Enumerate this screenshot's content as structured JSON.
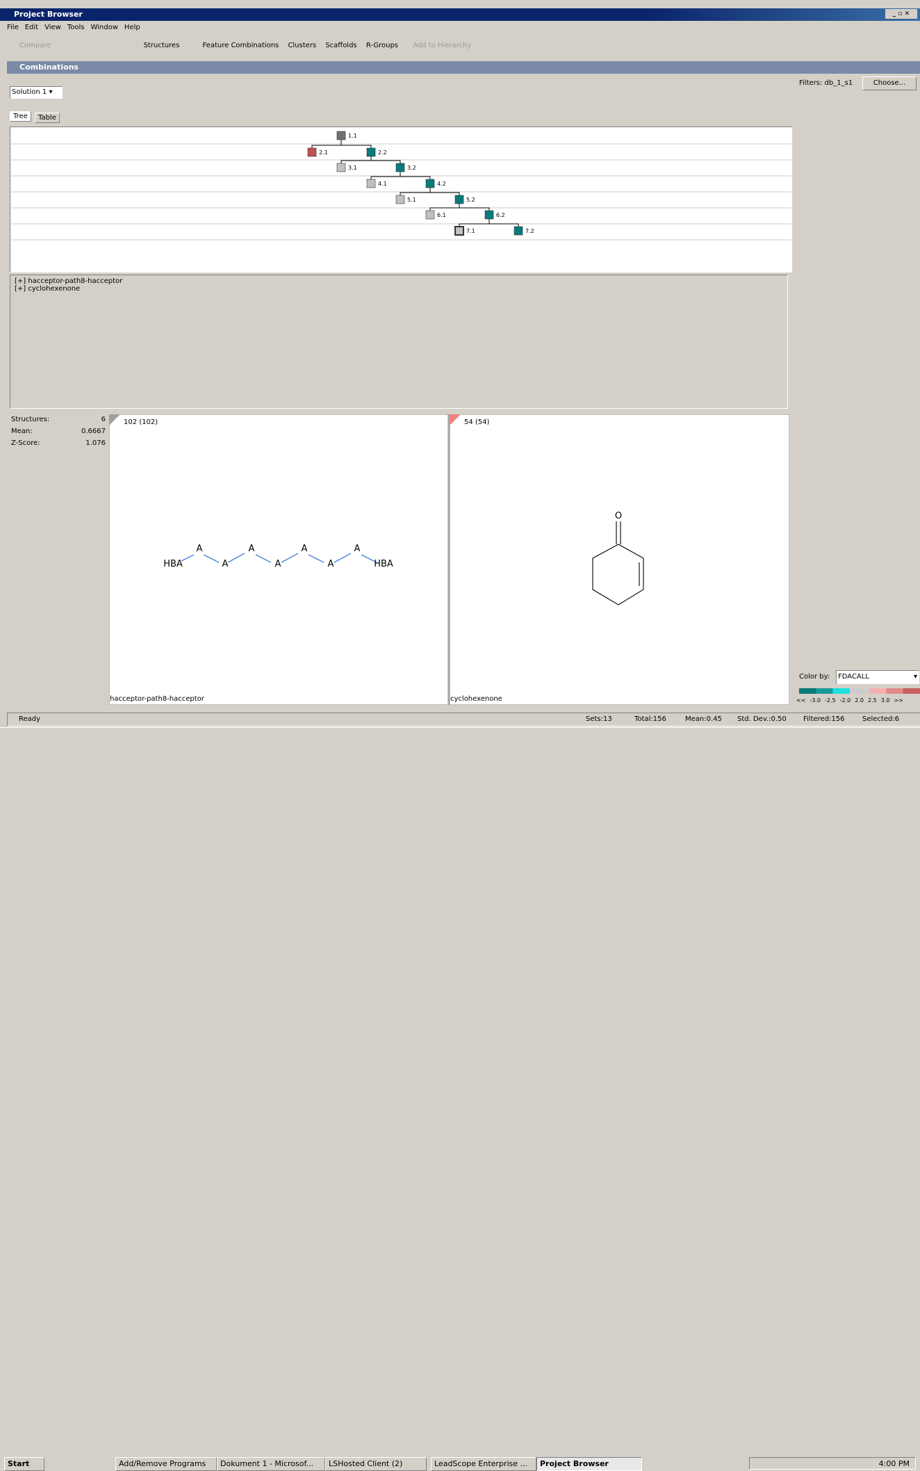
{
  "window": {
    "title": "Project Browser"
  },
  "menu": [
    "File",
    "Edit",
    "View",
    "Tools",
    "Window",
    "Help"
  ],
  "toolbar": {
    "compare": "Compare",
    "structures": "Structures",
    "feature_combinations": "Feature Combinations",
    "clusters": "Clusters",
    "scaffolds": "Scaffolds",
    "r_groups": "R-Groups",
    "add_to_hierarchy": "Add to Hierarchy"
  },
  "panel": {
    "title": "Combinations",
    "solution": "Solution 1",
    "tabs": [
      "Tree",
      "Table"
    ]
  },
  "tree": {
    "nodes": [
      "1.1",
      "2.1",
      "2.2",
      "3.1",
      "3.2",
      "4.1",
      "4.2",
      "5.1",
      "5.2",
      "6.1",
      "6.2",
      "7.1",
      "7.2"
    ]
  },
  "features": [
    "[+] hacceptor-path8-hacceptor",
    "[+] cyclohexenone"
  ],
  "stats": [
    {
      "label": "Structures:",
      "value": "6"
    },
    {
      "label": "Mean:",
      "value": "0.6667"
    },
    {
      "label": "Z-Score:",
      "value": "1.076"
    }
  ],
  "structures": [
    {
      "count": "102 (102)",
      "name": "hacceptor-path8-hacceptor",
      "atoms": [
        "HBA",
        "A",
        "A",
        "A",
        "A",
        "A",
        "A",
        "A",
        "HBA"
      ]
    },
    {
      "count": "54 (54)",
      "name": "cyclohexenone",
      "atoms": [
        "O"
      ]
    }
  ],
  "filters": {
    "label": "Filters: db_1_s1",
    "button": "Choose...",
    "color_by_label": "Color by:",
    "color_by": "FDACALL",
    "scale": [
      "<<",
      "-3.0",
      "-2.5",
      "-2.0",
      "2.0",
      "2.5",
      "3.0",
      ">>"
    ]
  },
  "status": {
    "ready": "Ready",
    "sets": "Sets:13",
    "total": "Total:156",
    "mean": "Mean:0.45",
    "std": "Std. Dev.:0.50",
    "filtered": "Filtered:156",
    "selected": "Selected:6"
  },
  "taskbar": {
    "start": "Start",
    "items": [
      "Add/Remove Programs",
      "Dokument 1 - Microsof...",
      "LSHosted Client (2)",
      "LeadScope Enterprise ...",
      "Project Browser"
    ],
    "clock": "4:00 PM"
  }
}
